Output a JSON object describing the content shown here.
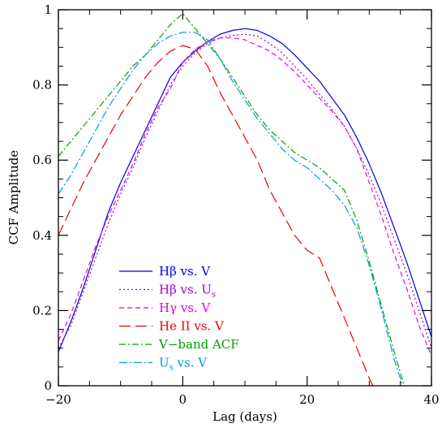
{
  "chart_data": {
    "type": "line",
    "title": "",
    "xlabel": "Lag (days)",
    "ylabel": "CCF Amplitude",
    "xlim": [
      -20,
      40
    ],
    "ylim": [
      0,
      1
    ],
    "x_ticks": [
      -20,
      0,
      20,
      40
    ],
    "y_ticks": [
      0,
      0.2,
      0.4,
      0.6,
      0.8,
      1
    ],
    "x_tick_labels": [
      "−20",
      "0",
      "20",
      "40"
    ],
    "y_tick_labels": [
      "0",
      "0.2",
      "0.4",
      "0.6",
      "0.8",
      "1"
    ],
    "grid": false,
    "legend_position": "lower-left",
    "series": [
      {
        "legend": {
          "main": "Hβ vs. V",
          "sub": ""
        },
        "color": "#0000dd",
        "dash": "",
        "x": [
          -20,
          -18,
          -16,
          -14,
          -12,
          -10,
          -8,
          -6,
          -4,
          -2,
          0,
          2,
          4,
          6,
          8,
          10,
          12,
          14,
          16,
          18,
          20,
          22,
          24,
          26,
          28,
          30,
          32,
          34,
          36,
          38,
          40
        ],
        "y": [
          0.09,
          0.17,
          0.26,
          0.36,
          0.46,
          0.54,
          0.61,
          0.68,
          0.75,
          0.82,
          0.86,
          0.89,
          0.915,
          0.935,
          0.945,
          0.95,
          0.945,
          0.93,
          0.91,
          0.88,
          0.845,
          0.81,
          0.765,
          0.72,
          0.66,
          0.59,
          0.51,
          0.42,
          0.33,
          0.23,
          0.13
        ]
      },
      {
        "legend": {
          "main": "Hβ vs. U",
          "sub": "s"
        },
        "color": "#a000c8",
        "dash": "2,3",
        "x": [
          -20,
          -18,
          -16,
          -14,
          -12,
          -10,
          -8,
          -6,
          -4,
          -2,
          0,
          2,
          4,
          6,
          8,
          10,
          12,
          14,
          16,
          18,
          20,
          22,
          24,
          26,
          28,
          30,
          32,
          34,
          36,
          38,
          40
        ],
        "y": [
          0.1,
          0.16,
          0.25,
          0.34,
          0.43,
          0.51,
          0.58,
          0.66,
          0.73,
          0.8,
          0.85,
          0.885,
          0.91,
          0.925,
          0.932,
          0.935,
          0.93,
          0.91,
          0.885,
          0.85,
          0.815,
          0.775,
          0.735,
          0.69,
          0.63,
          0.56,
          0.48,
          0.39,
          0.3,
          0.2,
          0.1
        ]
      },
      {
        "legend": {
          "main": "Hγ vs. V",
          "sub": ""
        },
        "color": "#e800e8",
        "dash": "6,4",
        "x": [
          -20,
          -18,
          -16,
          -14,
          -12,
          -10,
          -8,
          -6,
          -4,
          -2,
          0,
          2,
          4,
          6,
          8,
          10,
          12,
          14,
          16,
          18,
          20,
          22,
          24,
          26,
          28,
          30,
          32,
          34,
          36,
          38,
          40
        ],
        "y": [
          0.12,
          0.19,
          0.28,
          0.37,
          0.45,
          0.52,
          0.59,
          0.67,
          0.74,
          0.79,
          0.86,
          0.895,
          0.915,
          0.925,
          0.925,
          0.92,
          0.905,
          0.89,
          0.865,
          0.835,
          0.8,
          0.765,
          0.73,
          0.69,
          0.63,
          0.54,
          0.45,
          0.35,
          0.26,
          0.16,
          0.08
        ]
      },
      {
        "legend": {
          "main": "He II vs. V",
          "sub": ""
        },
        "color": "#ee0000",
        "dash": "14,6",
        "x": [
          -20,
          -18,
          -16,
          -14,
          -12,
          -10,
          -8,
          -6,
          -4,
          -2,
          0,
          2,
          4,
          6,
          8,
          10,
          12,
          14,
          16,
          18,
          20,
          22,
          24,
          26,
          28,
          30,
          32
        ],
        "y": [
          0.4,
          0.47,
          0.54,
          0.6,
          0.66,
          0.72,
          0.77,
          0.82,
          0.86,
          0.89,
          0.905,
          0.895,
          0.85,
          0.78,
          0.72,
          0.66,
          0.6,
          0.52,
          0.46,
          0.4,
          0.36,
          0.34,
          0.26,
          0.18,
          0.1,
          0.02,
          -0.05
        ]
      },
      {
        "legend": {
          "main": "V−band ACF",
          "sub": ""
        },
        "color": "#00a000",
        "dash": "8,3,2,3",
        "x": [
          -20,
          -18,
          -16,
          -14,
          -12,
          -10,
          -8,
          -6,
          -4,
          -2,
          0,
          2,
          4,
          6,
          8,
          10,
          12,
          14,
          16,
          18,
          20,
          22,
          24,
          26,
          28,
          30,
          32,
          34,
          36,
          38
        ],
        "y": [
          0.61,
          0.65,
          0.69,
          0.73,
          0.77,
          0.81,
          0.85,
          0.88,
          0.92,
          0.96,
          0.99,
          0.95,
          0.91,
          0.87,
          0.82,
          0.77,
          0.72,
          0.68,
          0.65,
          0.62,
          0.6,
          0.58,
          0.55,
          0.52,
          0.44,
          0.33,
          0.21,
          0.09,
          -0.02,
          -0.06
        ]
      },
      {
        "legend": {
          "main": "U",
          "sub": "s",
          "tail": " vs. V"
        },
        "color": "#0099dd",
        "dash": "10,3,2,3",
        "x": [
          -20,
          -18,
          -16,
          -14,
          -12,
          -10,
          -8,
          -6,
          -4,
          -2,
          0,
          2,
          4,
          6,
          8,
          10,
          12,
          14,
          16,
          18,
          20,
          22,
          24,
          26,
          28,
          30,
          32,
          34,
          36,
          38
        ],
        "y": [
          0.51,
          0.56,
          0.62,
          0.68,
          0.74,
          0.79,
          0.84,
          0.88,
          0.91,
          0.93,
          0.94,
          0.94,
          0.92,
          0.87,
          0.81,
          0.76,
          0.71,
          0.67,
          0.63,
          0.6,
          0.58,
          0.55,
          0.52,
          0.48,
          0.42,
          0.32,
          0.2,
          0.07,
          -0.03,
          -0.06
        ]
      }
    ]
  }
}
